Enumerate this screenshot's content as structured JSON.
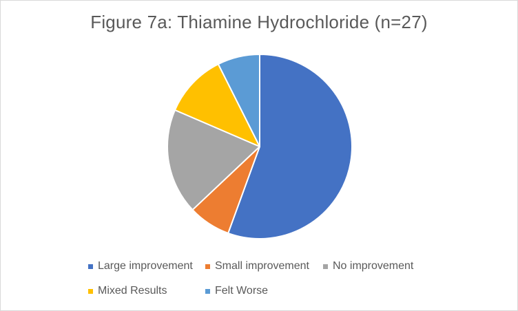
{
  "chart_data": {
    "type": "pie",
    "title": "Figure 7a: Thiamine Hydrochloride (n=27)",
    "categories": [
      "Large improvement",
      "Small improvement",
      "No improvement",
      "Mixed Results",
      "Felt Worse"
    ],
    "values": [
      15,
      2,
      5,
      3,
      2
    ],
    "colors": [
      "#4472C4",
      "#ED7D31",
      "#A5A5A5",
      "#FFC000",
      "#5B9BD5"
    ],
    "legend_position": "bottom",
    "start_angle_deg": 0,
    "direction": "clockwise"
  }
}
